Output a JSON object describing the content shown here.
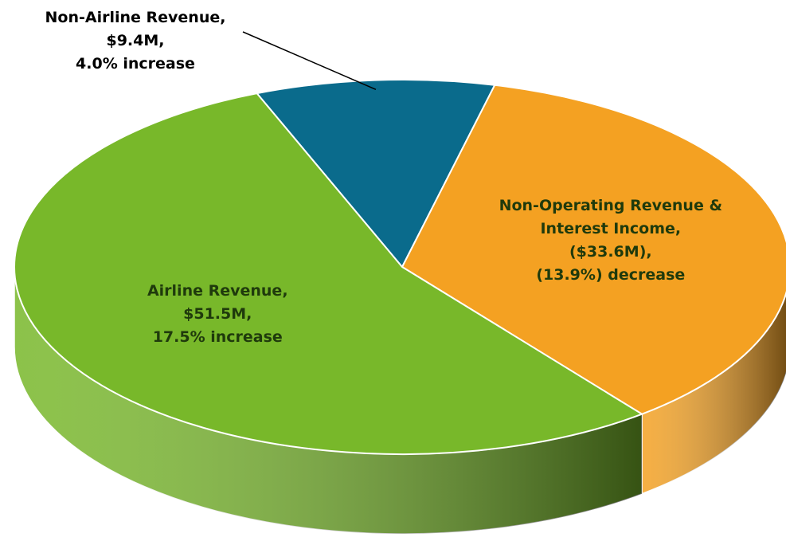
{
  "chart_data": {
    "type": "pie",
    "categories": [
      "Non-Airline Revenue,",
      "Non-Operating Revenue & Interest Income,",
      "Airline Revenue,"
    ],
    "values": [
      9.4,
      33.6,
      51.5
    ],
    "value_labels": [
      "$9.4M,",
      "($33.6M),",
      "$51.5M,"
    ],
    "change_labels": [
      "4.0% increase",
      "(13.9%) decrease",
      "17.5% increase"
    ],
    "colors": [
      "#0a6b8c",
      "#f4a122",
      "#78b82a"
    ]
  }
}
